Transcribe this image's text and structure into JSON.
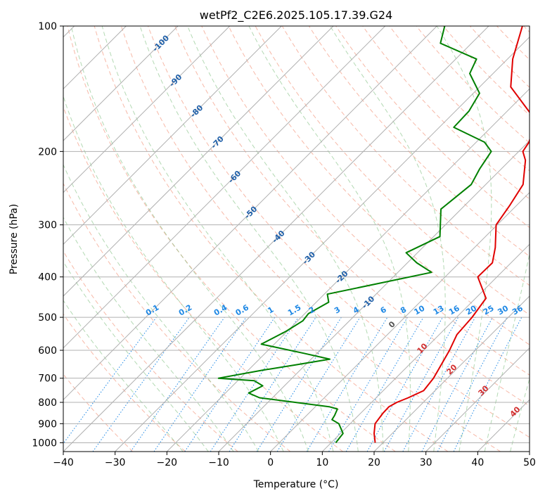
{
  "chart_data": {
    "type": "line",
    "subtype": "skew-t log-p sounding",
    "title": "wetPf2_C2E6.2025.105.17.39.G24",
    "xlabel": "Temperature (°C)",
    "ylabel": "Pressure (hPa)",
    "xlim": [
      -40,
      50
    ],
    "ylim": [
      1050,
      100
    ],
    "y_scale": "log",
    "grid": true,
    "x_ticks": [
      -40,
      -30,
      -20,
      -10,
      0,
      10,
      20,
      30,
      40,
      50
    ],
    "x_tick_labels": [
      "−40",
      "−30",
      "−20",
      "−10",
      "0",
      "10",
      "20",
      "30",
      "40",
      "50"
    ],
    "y_ticks": [
      1000,
      900,
      800,
      700,
      600,
      500,
      400,
      300,
      200,
      100
    ],
    "y_tick_labels": [
      "1000",
      "900",
      "800",
      "700",
      "600",
      "500",
      "400",
      "300",
      "200",
      "100"
    ],
    "series": [
      {
        "color": "#e00000",
        "x": [
          18.5,
          16.5,
          14.8,
          14.3,
          14.2,
          14.9,
          16.2,
          17.8,
          17.3,
          16.2,
          15.0,
          13.4,
          13.0,
          12.0,
          6.3,
          6.4,
          4.0,
          -0.2,
          -1.3,
          -2.8,
          -7.0,
          -9.2,
          -9.8,
          -11.2,
          -14.0,
          -24.0,
          -29.0,
          -33.5
        ],
        "y": [
          1000,
          950,
          900,
          850,
          820,
          800,
          780,
          750,
          700,
          650,
          600,
          550,
          500,
          450,
          400,
          370,
          340,
          300,
          270,
          240,
          210,
          200,
          190,
          180,
          165,
          140,
          120,
          100
        ]
      },
      {
        "color": "#008000",
        "x": [
          10.9,
          10.5,
          7.8,
          5.7,
          5.4,
          4.7,
          2.8,
          -12.5,
          -15.5,
          -14.2,
          -16.8,
          -24.2,
          -17.3,
          -11.8,
          -6.4,
          -12.5,
          -22.5,
          -20.2,
          -19.0,
          -19.3,
          -17.6,
          -19.4,
          -3.5,
          -8.2,
          -12.2,
          -8.8,
          -13.9,
          -12.8,
          -14.2,
          -15.3,
          -18.4,
          -27.2,
          -27.4,
          -28.8,
          -34.5,
          -36.0,
          -46.0,
          -48.5
        ],
        "y": [
          1000,
          950,
          900,
          880,
          860,
          830,
          820,
          780,
          760,
          730,
          710,
          700,
          670,
          650,
          630,
          610,
          580,
          540,
          510,
          490,
          460,
          440,
          390,
          370,
          350,
          320,
          275,
          240,
          220,
          200,
          190,
          175,
          160,
          145,
          130,
          120,
          110,
          100
        ]
      }
    ],
    "isotherm_labels": [
      "-100",
      "-90",
      "-80",
      "-70",
      "-60",
      "-50",
      "-40",
      "-30",
      "-20",
      "-10"
    ],
    "mixing_ratio_labels": [
      "0.1",
      "0.2",
      "0.4",
      "0.6",
      "1",
      "1.5",
      "2",
      "3",
      "4",
      "6",
      "8",
      "10",
      "13",
      "16",
      "20",
      "25",
      "30",
      "36"
    ],
    "moist_adiabat_labels": [
      "0",
      "10",
      "20",
      "30",
      "40"
    ],
    "colors": {
      "temperature": "#e00000",
      "dewpoint": "#008000",
      "isotherm_label": "#1f5fa8",
      "mixing_ratio": "#1e88e5",
      "moist_adiabat_label": "#d32f2f",
      "zero_label": "#555555",
      "dry_adiabat": "#f08060",
      "moist_adiabat": "#80c080",
      "grid": "#b0b0b0"
    }
  }
}
